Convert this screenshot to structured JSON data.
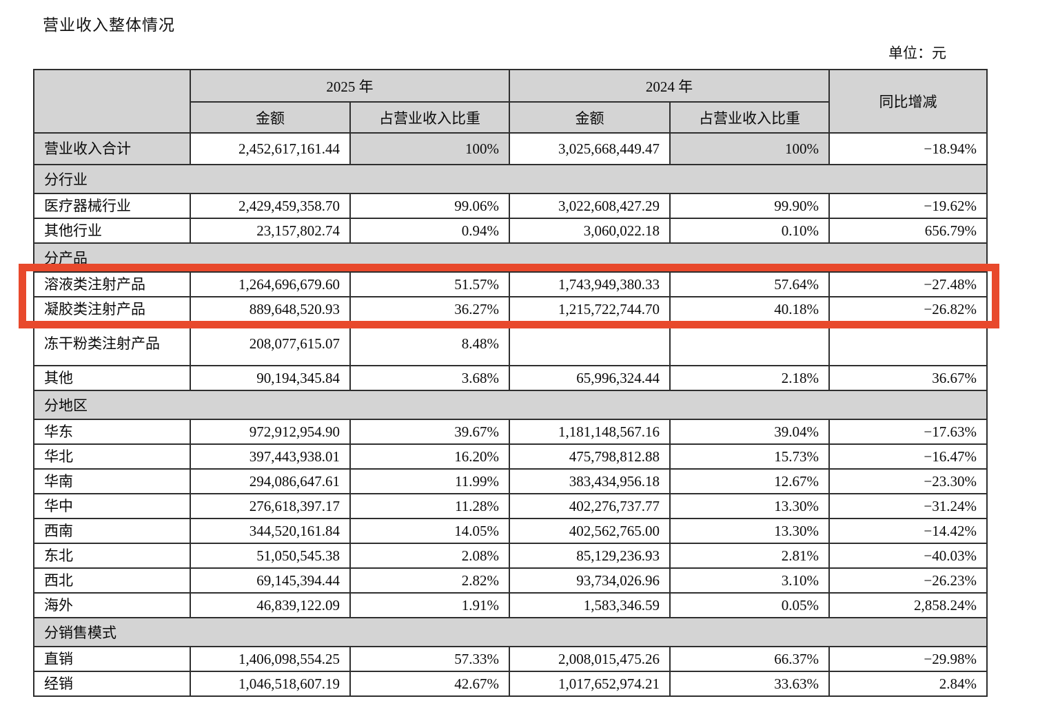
{
  "page": {
    "title": "营业收入整体情况",
    "unit_label": "单位：元"
  },
  "table": {
    "header": {
      "year_2025": "2025 年",
      "year_2024": "2024 年",
      "amount": "金额",
      "share": "占营业收入比重",
      "yoy": "同比增减"
    },
    "rows": [
      {
        "id": "total-revenue",
        "type": "total",
        "label": "营业收入合计",
        "cells": [
          "2,452,617,161.44",
          "100%",
          "3,025,668,449.47",
          "100%",
          "−18.94%"
        ]
      },
      {
        "id": "section-by-industry",
        "type": "section",
        "label": "分行业"
      },
      {
        "id": "medical-device-industry",
        "type": "data",
        "label": "医疗器械行业",
        "cells": [
          "2,429,459,358.70",
          "99.06%",
          "3,022,608,427.29",
          "99.90%",
          "−19.62%"
        ]
      },
      {
        "id": "other-industries",
        "type": "data",
        "label": "其他行业",
        "cells": [
          "23,157,802.74",
          "0.94%",
          "3,060,022.18",
          "0.10%",
          "656.79%"
        ]
      },
      {
        "id": "section-by-product",
        "type": "section",
        "label": "分产品"
      },
      {
        "id": "solution-injection-products",
        "type": "data",
        "label": "溶液类注射产品",
        "highlight": true,
        "cells": [
          "1,264,696,679.60",
          "51.57%",
          "1,743,949,380.33",
          "57.64%",
          "−27.48%"
        ]
      },
      {
        "id": "gel-injection-products",
        "type": "data",
        "label": "凝胶类注射产品",
        "highlight": true,
        "cells": [
          "889,648,520.93",
          "36.27%",
          "1,215,722,744.70",
          "40.18%",
          "−26.82%"
        ]
      },
      {
        "id": "lyophilized-powder-injection-products",
        "type": "data",
        "tall": true,
        "label": "冻干粉类注射产品",
        "cells": [
          "208,077,615.07",
          "8.48%",
          "",
          "",
          ""
        ]
      },
      {
        "id": "other-products",
        "type": "data",
        "label": "其他",
        "cells": [
          "90,194,345.84",
          "3.68%",
          "65,996,324.44",
          "2.18%",
          "36.67%"
        ]
      },
      {
        "id": "section-by-region",
        "type": "section",
        "label": "分地区"
      },
      {
        "id": "east-china",
        "type": "data",
        "label": "华东",
        "cells": [
          "972,912,954.90",
          "39.67%",
          "1,181,148,567.16",
          "39.04%",
          "−17.63%"
        ]
      },
      {
        "id": "north-china",
        "type": "data",
        "label": "华北",
        "cells": [
          "397,443,938.01",
          "16.20%",
          "475,798,812.88",
          "15.73%",
          "−16.47%"
        ]
      },
      {
        "id": "south-china",
        "type": "data",
        "label": "华南",
        "cells": [
          "294,086,647.61",
          "11.99%",
          "383,434,956.18",
          "12.67%",
          "−23.30%"
        ]
      },
      {
        "id": "central-china",
        "type": "data",
        "label": "华中",
        "cells": [
          "276,618,397.17",
          "11.28%",
          "402,276,737.77",
          "13.30%",
          "−31.24%"
        ]
      },
      {
        "id": "southwest-china",
        "type": "data",
        "label": "西南",
        "cells": [
          "344,520,161.84",
          "14.05%",
          "402,562,765.00",
          "13.30%",
          "−14.42%"
        ]
      },
      {
        "id": "northeast-china",
        "type": "data",
        "label": "东北",
        "cells": [
          "51,050,545.38",
          "2.08%",
          "85,129,236.93",
          "2.81%",
          "−40.03%"
        ]
      },
      {
        "id": "northwest-china",
        "type": "data",
        "label": "西北",
        "cells": [
          "69,145,394.44",
          "2.82%",
          "93,734,026.96",
          "3.10%",
          "−26.23%"
        ]
      },
      {
        "id": "overseas",
        "type": "data",
        "label": "海外",
        "cells": [
          "46,839,122.09",
          "1.91%",
          "1,583,346.59",
          "0.05%",
          "2,858.24%"
        ]
      },
      {
        "id": "section-by-sales-model",
        "type": "section",
        "label": "分销售模式"
      },
      {
        "id": "direct-sales",
        "type": "data",
        "label": "直销",
        "cells": [
          "1,406,098,554.25",
          "57.33%",
          "2,008,015,475.26",
          "66.37%",
          "−29.98%"
        ]
      },
      {
        "id": "distribution-sales",
        "type": "data",
        "label": "经销",
        "cells": [
          "1,046,518,607.19",
          "42.67%",
          "1,017,652,974.21",
          "33.63%",
          "2.84%"
        ]
      }
    ]
  },
  "highlight_box": {
    "color": "#e8492c",
    "rows_highlighted": [
      "溶液类注射产品",
      "凝胶类注射产品"
    ]
  },
  "colors": {
    "header_gray": "#d4d4d4",
    "border": "#2e2e2e"
  }
}
